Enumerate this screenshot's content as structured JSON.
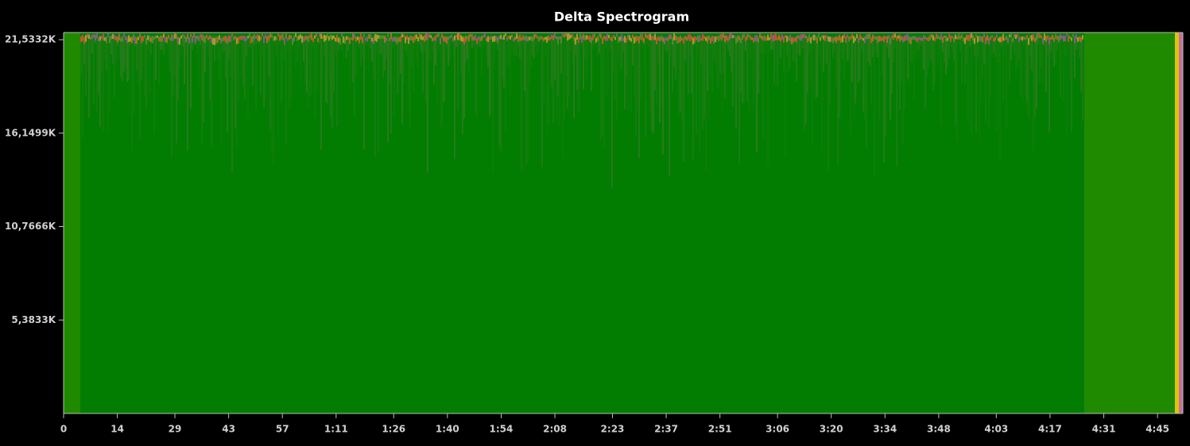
{
  "chart_data": {
    "type": "spectrogram",
    "title": "Delta Spectrogram",
    "xlim": [
      0,
      291.6
    ],
    "xticks": [
      0,
      14,
      29,
      43,
      57,
      {
        "value": 71,
        "label": "1:11"
      },
      {
        "value": 86,
        "label": "1:26"
      },
      {
        "value": 100,
        "label": "1:40"
      },
      {
        "value": 114,
        "label": "1:54"
      },
      {
        "value": 128,
        "label": "2:08"
      },
      {
        "value": 143,
        "label": "2:23"
      },
      {
        "value": 157,
        "label": "2:37"
      },
      {
        "value": 171,
        "label": "2:51"
      },
      {
        "value": 186,
        "label": "3:06"
      },
      {
        "value": 200,
        "label": "3:20"
      },
      {
        "value": 214,
        "label": "3:34"
      },
      {
        "value": 228,
        "label": "3:48"
      },
      {
        "value": 243,
        "label": "4:03"
      },
      {
        "value": 257,
        "label": "4:17"
      },
      {
        "value": 271,
        "label": "4:31"
      },
      {
        "value": 285,
        "label": "4:45"
      }
    ],
    "ylim": [
      0,
      21945
    ],
    "yticks": [
      {
        "value": 5383.3,
        "label": "5,3833K"
      },
      {
        "value": 10766.6,
        "label": "10,7666K"
      },
      {
        "value": 16149.9,
        "label": "16,1499K"
      },
      {
        "value": 21533.2,
        "label": "21,5332K"
      }
    ],
    "color": "#027d02"
  }
}
